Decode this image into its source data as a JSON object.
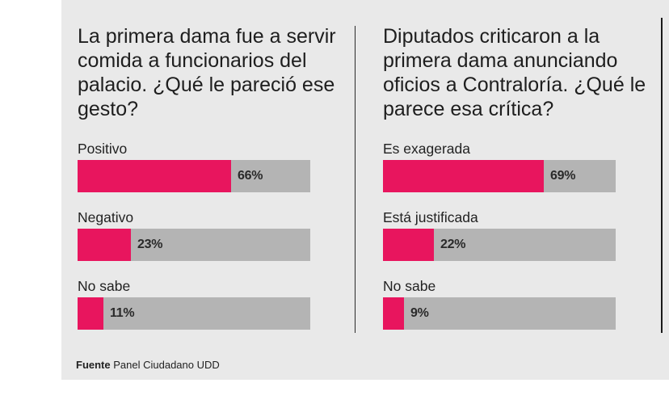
{
  "chart_data": [
    {
      "type": "bar",
      "orientation": "horizontal",
      "title": "La primera dama fue a servir comida a funcionarios del palacio. ¿Qué le pareció ese gesto?",
      "categories": [
        "Positivo",
        "Negativo",
        "No sabe"
      ],
      "values": [
        66,
        23,
        11
      ],
      "value_labels": [
        "66%",
        "23%",
        "11%"
      ],
      "xlim": [
        0,
        100
      ],
      "colors": {
        "fill": "#e8155e",
        "track": "#b4b4b4"
      }
    },
    {
      "type": "bar",
      "orientation": "horizontal",
      "title": "Diputados criticaron a la primera dama anunciando oficios a Contraloría. ¿Qué le parece esa crítica?",
      "categories": [
        "Es exagerada",
        "Está justificada",
        "No sabe"
      ],
      "values": [
        69,
        22,
        9
      ],
      "value_labels": [
        "69%",
        "22%",
        "9%"
      ],
      "xlim": [
        0,
        100
      ],
      "colors": {
        "fill": "#e8155e",
        "track": "#b4b4b4"
      }
    }
  ],
  "source": {
    "prefix": "Fuente",
    "text": "Panel Ciudadano UDD"
  }
}
